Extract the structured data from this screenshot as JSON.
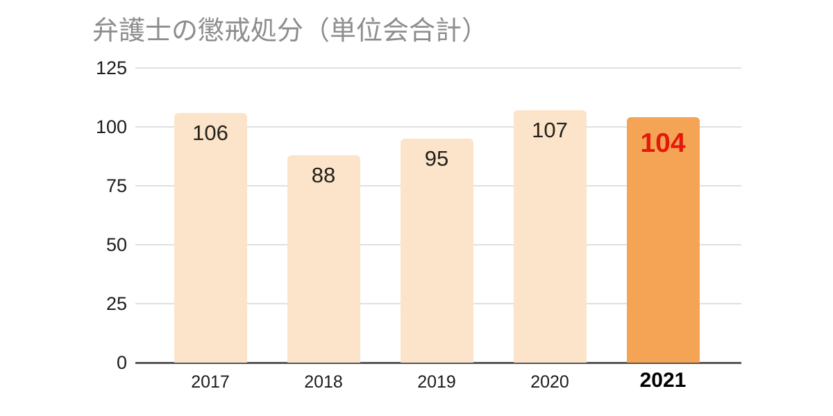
{
  "title": "弁護士の懲戒処分（単位会合計）",
  "chart_data": {
    "type": "bar",
    "title": "弁護士の懲戒処分（単位会合計）",
    "categories": [
      "2017",
      "2018",
      "2019",
      "2020",
      "2021"
    ],
    "values": [
      106,
      88,
      95,
      107,
      104
    ],
    "value_labels": [
      "106",
      "88",
      "95",
      "107",
      "104"
    ],
    "xlabel": "",
    "ylabel": "",
    "ylim": [
      0,
      125
    ],
    "yticks": [
      0,
      25,
      50,
      75,
      100,
      125
    ],
    "ytick_labels": [
      "0",
      "25",
      "50",
      "75",
      "100",
      "125"
    ],
    "grid": true,
    "legend": false,
    "highlight_category": "2021",
    "colors": {
      "background": "#FFFFFF",
      "bar_default": "#FBE4C9",
      "bar_highlight": "#F5A455",
      "value_label_default": "#25201B",
      "value_label_highlight": "#E2190C",
      "title_color": "#8D8D8D",
      "axis_text": "#1B1B1B",
      "axis_text_highlight": "#000000",
      "gridline": "#E0E0E0",
      "axis_line": "#555555"
    }
  }
}
